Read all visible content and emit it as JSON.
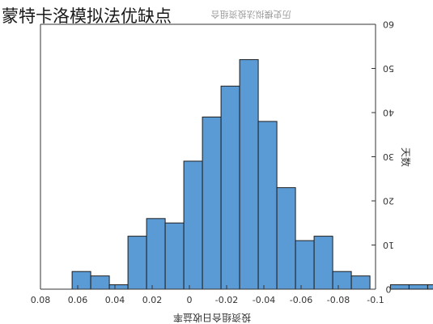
{
  "page": {
    "heading": "蒙特卡洛模拟法优缺点"
  },
  "chart_data": {
    "type": "bar",
    "title": "历史模拟法投资组合",
    "xlabel": "投资组合日收益率",
    "ylabel": "天数",
    "x_ticks": [
      "0.08",
      "0.06",
      "0.04",
      "0.02",
      "0",
      "-0.02",
      "-0.04",
      "-0.06",
      "-0.08",
      "-0.1"
    ],
    "x_tick_values": [
      0.08,
      0.06,
      0.04,
      0.02,
      0,
      -0.02,
      -0.04,
      -0.06,
      -0.08,
      -0.1
    ],
    "y_ticks": [
      "0",
      "10",
      "20",
      "30",
      "40",
      "50",
      "60"
    ],
    "y_tick_values": [
      0,
      10,
      20,
      30,
      40,
      50,
      60
    ],
    "xlim": [
      0.08,
      -0.1
    ],
    "ylim": [
      0,
      60
    ],
    "grid": false,
    "bars": [
      {
        "x0": 0.063,
        "x1": 0.053,
        "value": 4
      },
      {
        "x0": 0.053,
        "x1": 0.043,
        "value": 3
      },
      {
        "x0": 0.043,
        "x1": 0.033,
        "value": 1
      },
      {
        "x0": 0.033,
        "x1": 0.023,
        "value": 12
      },
      {
        "x0": 0.023,
        "x1": 0.013,
        "value": 16
      },
      {
        "x0": 0.013,
        "x1": 0.003,
        "value": 15
      },
      {
        "x0": 0.003,
        "x1": -0.007,
        "value": 29
      },
      {
        "x0": -0.007,
        "x1": -0.017,
        "value": 39
      },
      {
        "x0": -0.017,
        "x1": -0.027,
        "value": 46
      },
      {
        "x0": -0.027,
        "x1": -0.037,
        "value": 52
      },
      {
        "x0": -0.037,
        "x1": -0.047,
        "value": 38
      },
      {
        "x0": -0.047,
        "x1": -0.057,
        "value": 23
      },
      {
        "x0": -0.057,
        "x1": -0.067,
        "value": 11
      },
      {
        "x0": -0.067,
        "x1": -0.077,
        "value": 12
      },
      {
        "x0": -0.077,
        "x1": -0.087,
        "value": 4
      },
      {
        "x0": -0.087,
        "x1": -0.097,
        "value": 3
      },
      {
        "x0": -0.108,
        "x1": -0.118,
        "value": 1
      },
      {
        "x0": -0.118,
        "x1": -0.128,
        "value": 1
      },
      {
        "x0": -0.128,
        "x1": -0.138,
        "value": 1
      }
    ]
  },
  "colors": {
    "bar_fill": "#5b9bd5",
    "bar_stroke": "#1f1f1f",
    "axis": "#333333"
  }
}
